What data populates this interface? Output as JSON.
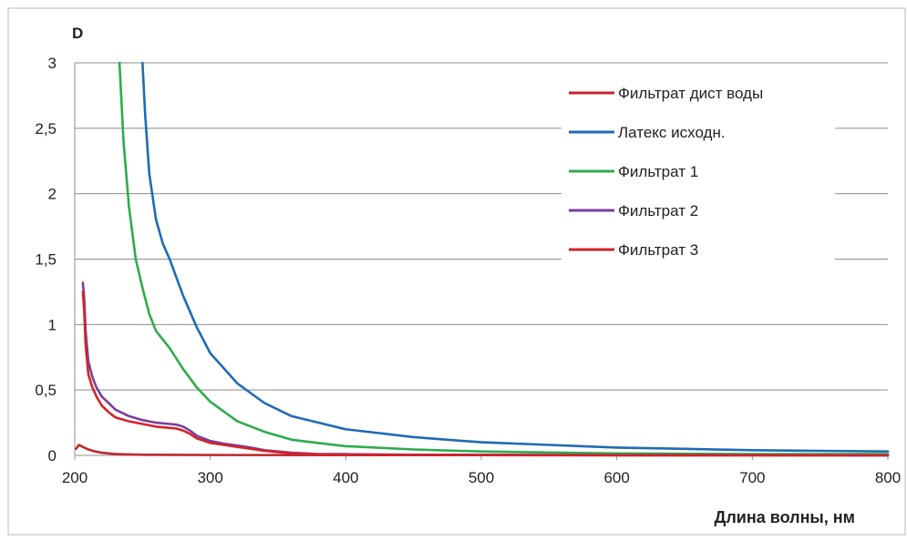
{
  "chart_data": {
    "type": "line",
    "title": "",
    "xlabel": "Длина волны, нм",
    "ylabel": "D",
    "xlim": [
      200,
      800
    ],
    "ylim": [
      0,
      3
    ],
    "x_ticks": [
      200,
      300,
      400,
      500,
      600,
      700,
      800
    ],
    "x_tick_labels": [
      "200",
      "300",
      "400",
      "500",
      "600",
      "700",
      "800"
    ],
    "y_ticks": [
      0,
      0.5,
      1,
      1.5,
      2,
      2.5,
      3
    ],
    "y_tick_labels": [
      "0",
      "0,5",
      "1",
      "1,5",
      "2",
      "2,5",
      "3"
    ],
    "grid": "horizontal",
    "legend_position": "top-right",
    "series": [
      {
        "name": "Фильтрат дист воды",
        "color": "#c0282d",
        "x": [
          201,
          203,
          205,
          207,
          210,
          215,
          220,
          230,
          250,
          300,
          400,
          800
        ],
        "y": [
          0.05,
          0.08,
          0.07,
          0.06,
          0.045,
          0.03,
          0.02,
          0.01,
          0.005,
          0.003,
          0.002,
          0.001
        ]
      },
      {
        "name": "Латекс исходн.",
        "color": "#1f6bb4",
        "x": [
          250,
          252,
          255,
          260,
          265,
          270,
          280,
          290,
          300,
          320,
          340,
          360,
          380,
          400,
          450,
          500,
          550,
          600,
          650,
          700,
          750,
          800
        ],
        "y": [
          3.0,
          2.6,
          2.15,
          1.8,
          1.62,
          1.5,
          1.22,
          0.98,
          0.78,
          0.55,
          0.4,
          0.3,
          0.25,
          0.2,
          0.14,
          0.1,
          0.08,
          0.06,
          0.05,
          0.04,
          0.035,
          0.03
        ]
      },
      {
        "name": "Фильтрат 1",
        "color": "#2eab4e",
        "x": [
          233,
          236,
          240,
          245,
          250,
          255,
          260,
          270,
          280,
          290,
          300,
          320,
          340,
          360,
          380,
          400,
          450,
          500,
          550,
          600,
          700,
          800
        ],
        "y": [
          3.0,
          2.4,
          1.9,
          1.5,
          1.28,
          1.08,
          0.95,
          0.82,
          0.66,
          0.52,
          0.41,
          0.26,
          0.18,
          0.12,
          0.095,
          0.07,
          0.045,
          0.03,
          0.022,
          0.015,
          0.01,
          0.01
        ]
      },
      {
        "name": "Фильтрат 2",
        "color": "#7b3f9c",
        "x": [
          206,
          207,
          208,
          210,
          213,
          216,
          220,
          225,
          230,
          240,
          250,
          260,
          270,
          275,
          280,
          285,
          290,
          300,
          310,
          320,
          330,
          340,
          350,
          360,
          380,
          400,
          450,
          500,
          600,
          700,
          800
        ],
        "y": [
          1.32,
          1.2,
          0.95,
          0.72,
          0.6,
          0.52,
          0.45,
          0.4,
          0.35,
          0.3,
          0.27,
          0.25,
          0.24,
          0.235,
          0.22,
          0.19,
          0.15,
          0.11,
          0.09,
          0.075,
          0.06,
          0.04,
          0.03,
          0.02,
          0.01,
          0.01,
          0.005,
          0.005,
          0.003,
          0.002,
          0.001
        ]
      },
      {
        "name": "Фильтрат 3",
        "color": "#d2232a",
        "x": [
          206,
          207,
          208,
          210,
          213,
          216,
          220,
          225,
          230,
          240,
          250,
          260,
          270,
          275,
          280,
          285,
          290,
          300,
          310,
          320,
          330,
          340,
          350,
          360,
          380,
          400,
          450,
          500,
          600,
          700,
          800
        ],
        "y": [
          1.25,
          1.1,
          0.85,
          0.62,
          0.52,
          0.45,
          0.38,
          0.33,
          0.29,
          0.26,
          0.24,
          0.22,
          0.21,
          0.205,
          0.19,
          0.165,
          0.13,
          0.095,
          0.08,
          0.065,
          0.05,
          0.035,
          0.025,
          0.015,
          0.008,
          0.005,
          0.003,
          0.002,
          0.001,
          0.001,
          0.001
        ]
      }
    ]
  }
}
